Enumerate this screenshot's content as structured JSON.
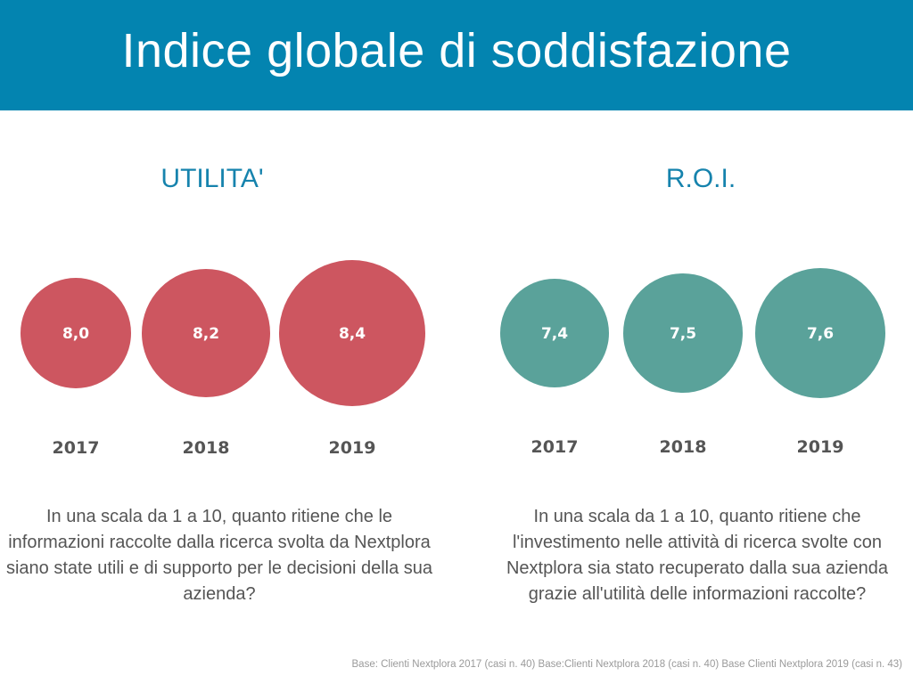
{
  "header": {
    "title": "Indice globale di soddisfazione"
  },
  "chart_data": [
    {
      "type": "bubble",
      "title": "UTILITA'",
      "color": "#cd5660",
      "categories": [
        "2017",
        "2018",
        "2019"
      ],
      "values": [
        8.0,
        8.2,
        8.4
      ],
      "labels": [
        "8,0",
        "8,2",
        "8,4"
      ]
    },
    {
      "type": "bubble",
      "title": "R.O.I.",
      "color": "#5aa29a",
      "categories": [
        "2017",
        "2018",
        "2019"
      ],
      "values": [
        7.4,
        7.5,
        7.6
      ],
      "labels": [
        "7,4",
        "7,5",
        "7,6"
      ]
    }
  ],
  "questions": {
    "left": "In una scala da 1 a 10, quanto ritiene che le informazioni raccolte dalla ricerca svolta da Nextplora siano state utili e di supporto per le decisioni della sua azienda?",
    "right": "In una scala da 1 a 10, quanto ritiene che l'investimento nelle attività di ricerca svolte con Nextplora sia stato recuperato dalla sua azienda grazie all'utilità delle informazioni raccolte?"
  },
  "footer": {
    "base_note": "Base: Clienti Nextplora 2017 (casi n. 40) Base:Clienti Nextplora 2018 (casi n. 40) Base Clienti Nextplora 2019 (casi n. 43)"
  }
}
